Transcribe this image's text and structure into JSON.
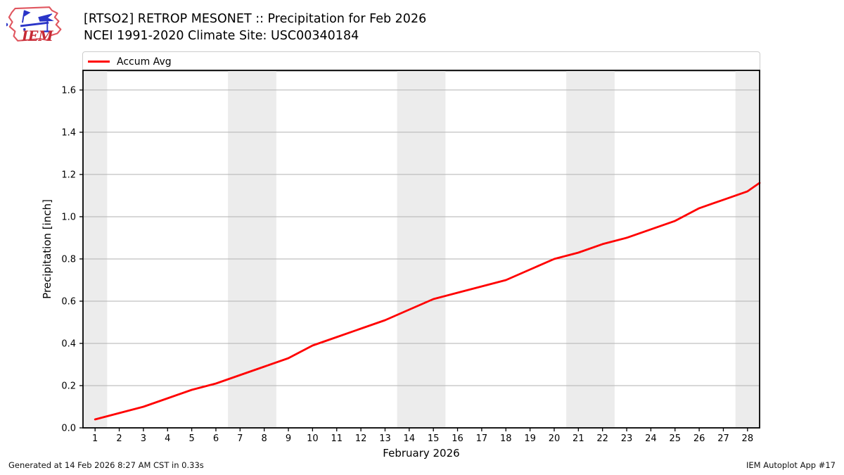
{
  "header": {
    "title": "[RTSO2] RETROP MESONET :: Precipitation for Feb 2026",
    "subtitle": "NCEI 1991-2020 Climate Site: USC00340184",
    "logo_text": "IEM"
  },
  "legend": {
    "items": [
      {
        "label": "Accum Avg",
        "color": "#ff0000"
      }
    ]
  },
  "footer": {
    "generated": "Generated at 14 Feb 2026 8:27 AM CST in 0.33s",
    "app": "IEM Autoplot App #17"
  },
  "chart_data": {
    "type": "line",
    "title": "[RTSO2] RETROP MESONET :: Precipitation for Feb 2026",
    "subtitle": "NCEI 1991-2020 Climate Site: USC00340184",
    "xlabel": "February 2026",
    "ylabel": "Precipitation [inch]",
    "xlim": [
      0.5,
      28.5
    ],
    "ylim": [
      0,
      1.693
    ],
    "xticks": [
      1,
      2,
      3,
      4,
      5,
      6,
      7,
      8,
      9,
      10,
      11,
      12,
      13,
      14,
      15,
      16,
      17,
      18,
      19,
      20,
      21,
      22,
      23,
      24,
      25,
      26,
      27,
      28
    ],
    "yticks": [
      0.0,
      0.2,
      0.4,
      0.6,
      0.8,
      1.0,
      1.2,
      1.4,
      1.6
    ],
    "grid": "horizontal",
    "legend_position": "top",
    "weekend_bands_x": [
      [
        0.5,
        1.5
      ],
      [
        6.5,
        8.5
      ],
      [
        13.5,
        15.5
      ],
      [
        20.5,
        22.5
      ],
      [
        27.5,
        28.5
      ]
    ],
    "colors": {
      "line": "#ff0000",
      "band": "#ececec",
      "grid": "#b2b2b2",
      "frame": "#000000",
      "text": "#000000"
    },
    "series": [
      {
        "name": "Accum Avg",
        "color": "#ff0000",
        "x": [
          1,
          2,
          3,
          4,
          5,
          6,
          7,
          8,
          9,
          10,
          11,
          12,
          13,
          14,
          15,
          16,
          17,
          18,
          19,
          20,
          21,
          22,
          23,
          24,
          25,
          26,
          27,
          28,
          28.5
        ],
        "values": [
          0.04,
          0.07,
          0.1,
          0.14,
          0.18,
          0.21,
          0.25,
          0.29,
          0.33,
          0.39,
          0.43,
          0.47,
          0.51,
          0.56,
          0.61,
          0.64,
          0.67,
          0.7,
          0.75,
          0.8,
          0.83,
          0.87,
          0.9,
          0.94,
          0.98,
          1.04,
          1.08,
          1.12,
          1.16
        ]
      }
    ]
  }
}
